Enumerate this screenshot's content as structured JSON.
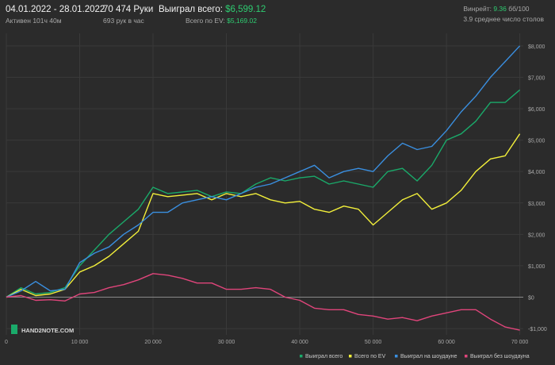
{
  "header": {
    "date_range": "04.01.2022 - 28.01.2022",
    "active": "Активен 101ч 40м",
    "hands": "70 474 Руки",
    "hands_per_hour": "693 рук в час",
    "won_total_label": "Выиграл всего:",
    "won_total_value": "$6,599.12",
    "ev_total_label": "Всего по EV:",
    "ev_total_value": "$5,169.02",
    "winrate_label": "Винрейт:",
    "winrate_value": "9.36",
    "winrate_unit": "бб/100",
    "avg_tables": "3.9 среднее число столов"
  },
  "watermark": "HAND2NOTE.COM",
  "colors": {
    "background": "#2b2b2b",
    "grid": "#3a3a3a",
    "zero_line": "#8a8a8a",
    "won_total": "#1aaa6a",
    "ev_total": "#f2ef3a",
    "showdown": "#3a8fe0",
    "non_showdown": "#e0457b",
    "accent_green": "#2ecc71"
  },
  "chart_data": {
    "type": "line",
    "x_ticks": [
      0,
      10000,
      20000,
      30000,
      40000,
      50000,
      60000,
      70000
    ],
    "x_tick_labels": [
      "0",
      "10 000",
      "20 000",
      "30 000",
      "40 000",
      "50 000",
      "60 000",
      "70 000"
    ],
    "y_ticks": [
      -1000,
      0,
      1000,
      2000,
      3000,
      4000,
      5000,
      6000,
      7000,
      8000
    ],
    "y_tick_labels": [
      "-$1,000",
      "$0",
      "$1,000",
      "$2,000",
      "$3,000",
      "$4,000",
      "$5,000",
      "$6,000",
      "$7,000",
      "$8,000"
    ],
    "xlim": [
      0,
      70474
    ],
    "ylim": [
      -1200,
      8400
    ],
    "grid": true,
    "legend_position": "bottom-right",
    "series": [
      {
        "name": "Выиграл всего",
        "color": "#1aaa6a",
        "x": [
          0,
          2000,
          4000,
          6000,
          8000,
          10000,
          12000,
          14000,
          16000,
          18000,
          20000,
          22000,
          24000,
          26000,
          28000,
          30000,
          32000,
          34000,
          36000,
          38000,
          40000,
          42000,
          44000,
          46000,
          48000,
          50000,
          52000,
          54000,
          56000,
          58000,
          60000,
          62000,
          64000,
          66000,
          68000,
          70000
        ],
        "y": [
          0,
          300,
          100,
          150,
          300,
          1000,
          1500,
          2000,
          2400,
          2800,
          3500,
          3300,
          3350,
          3400,
          3200,
          3350,
          3300,
          3600,
          3800,
          3700,
          3800,
          3850,
          3600,
          3700,
          3600,
          3500,
          4000,
          4100,
          3700,
          4200,
          5000,
          5200,
          5600,
          6200,
          6200,
          6600
        ]
      },
      {
        "name": "Всего по EV",
        "color": "#f2ef3a",
        "x": [
          0,
          2000,
          4000,
          6000,
          8000,
          10000,
          12000,
          14000,
          16000,
          18000,
          20000,
          22000,
          24000,
          26000,
          28000,
          30000,
          32000,
          34000,
          36000,
          38000,
          40000,
          42000,
          44000,
          46000,
          48000,
          50000,
          52000,
          54000,
          56000,
          58000,
          60000,
          62000,
          64000,
          66000,
          68000,
          70000
        ],
        "y": [
          0,
          250,
          50,
          100,
          250,
          800,
          1000,
          1300,
          1700,
          2100,
          3300,
          3200,
          3250,
          3300,
          3100,
          3300,
          3200,
          3300,
          3100,
          3000,
          3050,
          2800,
          2700,
          2900,
          2800,
          2300,
          2700,
          3100,
          3300,
          2800,
          3000,
          3400,
          4000,
          4400,
          4500,
          5200
        ]
      },
      {
        "name": "Выиграл на шоудауне",
        "color": "#3a8fe0",
        "x": [
          0,
          2000,
          4000,
          6000,
          8000,
          10000,
          12000,
          14000,
          16000,
          18000,
          20000,
          22000,
          24000,
          26000,
          28000,
          30000,
          32000,
          34000,
          36000,
          38000,
          40000,
          42000,
          44000,
          46000,
          48000,
          50000,
          52000,
          54000,
          56000,
          58000,
          60000,
          62000,
          64000,
          66000,
          68000,
          70000
        ],
        "y": [
          0,
          200,
          500,
          200,
          250,
          1100,
          1400,
          1600,
          2000,
          2300,
          2700,
          2700,
          3000,
          3100,
          3200,
          3100,
          3300,
          3500,
          3600,
          3800,
          4000,
          4200,
          3800,
          4000,
          4100,
          4000,
          4500,
          4900,
          4700,
          4800,
          5300,
          5900,
          6400,
          7000,
          7500,
          8000
        ]
      },
      {
        "name": "Выиграл без шоудауна",
        "color": "#e0457b",
        "x": [
          0,
          2000,
          4000,
          6000,
          8000,
          10000,
          12000,
          14000,
          16000,
          18000,
          20000,
          22000,
          24000,
          26000,
          28000,
          30000,
          32000,
          34000,
          36000,
          38000,
          40000,
          42000,
          44000,
          46000,
          48000,
          50000,
          52000,
          54000,
          56000,
          58000,
          60000,
          62000,
          64000,
          66000,
          68000,
          70000
        ],
        "y": [
          0,
          50,
          -100,
          -80,
          -120,
          100,
          150,
          300,
          400,
          550,
          750,
          700,
          600,
          450,
          450,
          250,
          250,
          300,
          250,
          0,
          -100,
          -350,
          -400,
          -400,
          -550,
          -600,
          -700,
          -650,
          -750,
          -600,
          -500,
          -400,
          -400,
          -700,
          -950,
          -1050
        ]
      }
    ]
  }
}
